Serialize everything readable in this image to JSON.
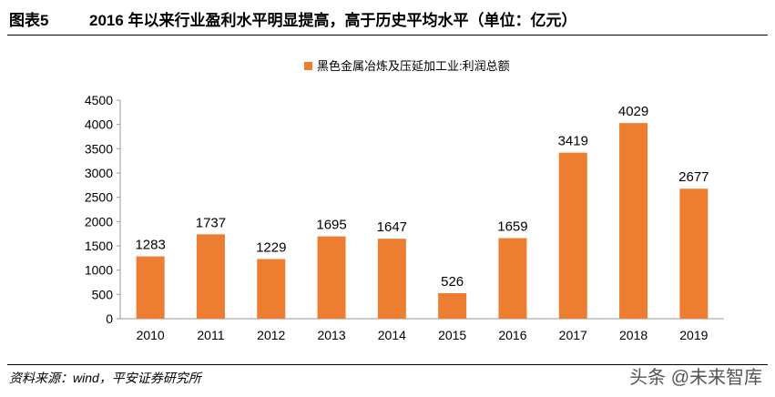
{
  "header": {
    "label": "图表5",
    "title": "2016 年以来行业盈利水平明显提高，高于历史平均水平（单位：亿元）"
  },
  "footer": {
    "source": "资料来源：wind，平安证券研究所",
    "watermark": "头条 @未来智库"
  },
  "chart_data": {
    "type": "bar",
    "categories": [
      "2010",
      "2011",
      "2012",
      "2013",
      "2014",
      "2015",
      "2016",
      "2017",
      "2018",
      "2019"
    ],
    "series": [
      {
        "name": "黑色金属冶炼及压延加工业:利润总额",
        "values": [
          1283,
          1737,
          1229,
          1695,
          1647,
          526,
          1659,
          3419,
          4029,
          2677
        ]
      }
    ],
    "ylim": [
      0,
      4500
    ],
    "yticks": [
      0,
      500,
      1000,
      1500,
      2000,
      2500,
      3000,
      3500,
      4000,
      4500
    ],
    "grid": false,
    "legend": "top-center",
    "bar_color": "#ED7D31"
  }
}
